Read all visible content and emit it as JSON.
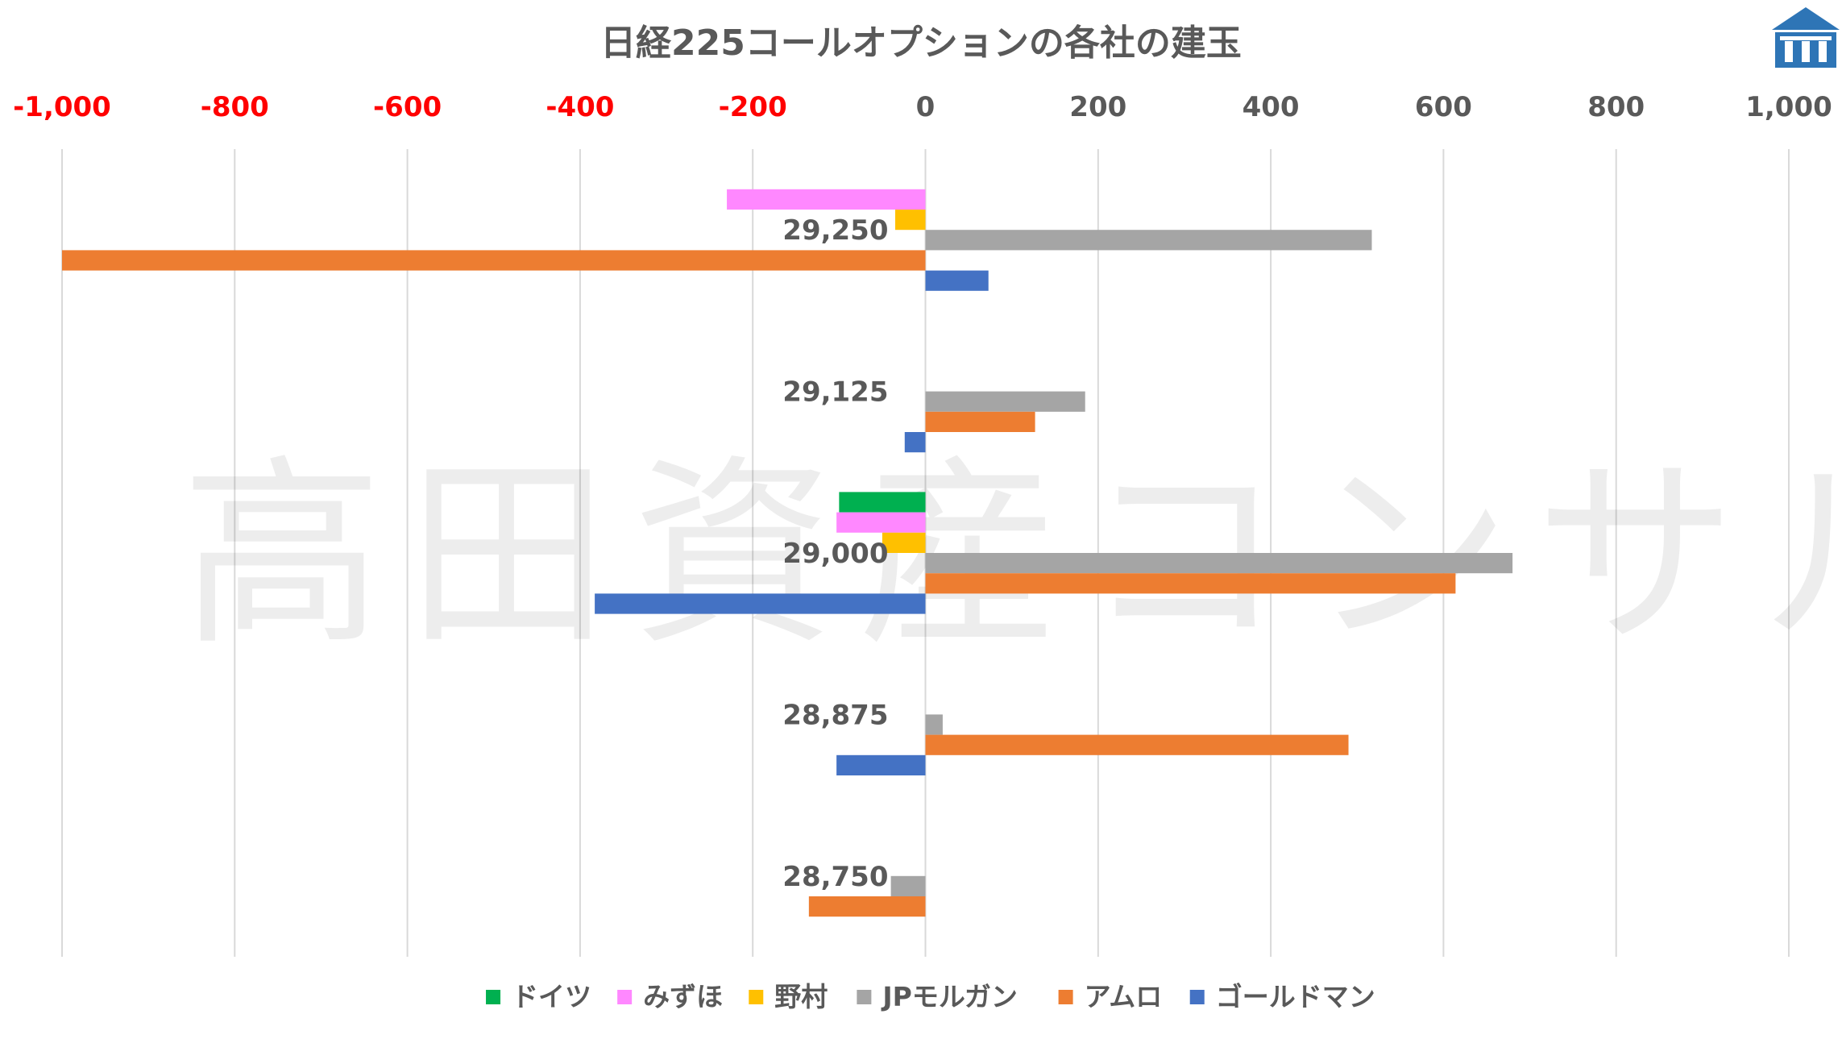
{
  "chart_data": {
    "type": "bar",
    "orientation": "horizontal",
    "title": "日経225コールオプションの各社の建玉",
    "categories": [
      "29,250",
      "29,125",
      "29,000",
      "28,875",
      "28,750"
    ],
    "xlim": [
      -1000,
      1000
    ],
    "x_ticks": [
      "-1,000",
      "-800",
      "-600",
      "-400",
      "-200",
      "0",
      "200",
      "400",
      "600",
      "800",
      "1,000"
    ],
    "x_tick_values": [
      -1000,
      -800,
      -600,
      -400,
      -200,
      0,
      200,
      400,
      600,
      800,
      1000
    ],
    "negative_tick_color": "#ff0000",
    "positive_tick_color": "#595959",
    "axis_position": "top",
    "grid": true,
    "legend_position": "bottom",
    "series": [
      {
        "name": "ドイツ",
        "color": "#00b050",
        "values": [
          0,
          0,
          -100,
          0,
          0
        ]
      },
      {
        "name": "みずほ",
        "color": "#ff88ff",
        "values": [
          -230,
          0,
          -103,
          0,
          0
        ]
      },
      {
        "name": "野村",
        "color": "#ffc000",
        "values": [
          -35,
          0,
          -50,
          0,
          0
        ]
      },
      {
        "name": "JPモルガン",
        "color": "#a5a5a5",
        "values": [
          517,
          185,
          680,
          20,
          -40
        ]
      },
      {
        "name": "アムロ",
        "color": "#ed7d31",
        "values": [
          -1000,
          127,
          614,
          490,
          -135
        ]
      },
      {
        "name": "ゴールドマン",
        "color": "#4472c4",
        "values": [
          73,
          -24,
          -383,
          -103,
          0
        ]
      }
    ]
  },
  "watermark": {
    "text": "高田資産コンサル"
  },
  "logo": {
    "icon": "roof-pillars-logo-icon",
    "color": "#2e75b6"
  }
}
